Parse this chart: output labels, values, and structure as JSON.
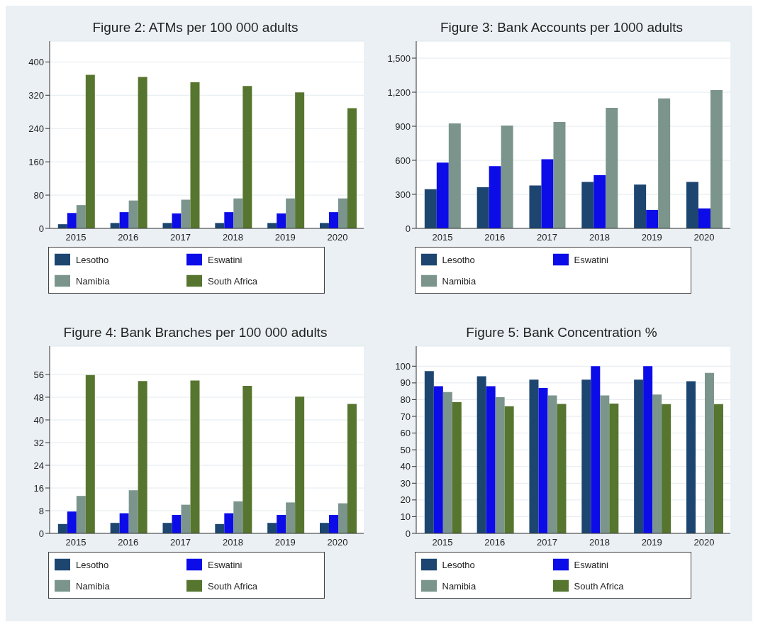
{
  "chart_data": [
    {
      "type": "bar",
      "title": "Figure 2: ATMs per 100 000 adults",
      "categories": [
        "2015",
        "2016",
        "2017",
        "2018",
        "2019",
        "2020"
      ],
      "series": [
        {
          "name": "Lesotho",
          "color": "#1c4670",
          "values": [
            10,
            13,
            13,
            13,
            13,
            13
          ]
        },
        {
          "name": "Eswatini",
          "color": "#0c0ce8",
          "values": [
            37,
            39,
            36,
            39,
            36,
            39
          ]
        },
        {
          "name": "Namibia",
          "color": "#7b958c",
          "values": [
            56,
            67,
            69,
            72,
            72,
            72
          ]
        },
        {
          "name": "South Africa",
          "color": "#56752e",
          "values": [
            369,
            364,
            351,
            342,
            327,
            289
          ]
        }
      ],
      "ylim": [
        0,
        450
      ],
      "yticks": [
        0,
        80,
        160,
        240,
        320,
        400
      ],
      "grid": "y",
      "legend": "bottom"
    },
    {
      "type": "bar",
      "title": "Figure 3: Bank Accounts per 1000 adults",
      "categories": [
        "2015",
        "2016",
        "2017",
        "2018",
        "2019",
        "2020"
      ],
      "series": [
        {
          "name": "Lesotho",
          "color": "#1c4670",
          "values": [
            345,
            363,
            378,
            409,
            386,
            409
          ]
        },
        {
          "name": "Eswatini",
          "color": "#0c0ce8",
          "values": [
            580,
            549,
            609,
            469,
            163,
            176
          ]
        },
        {
          "name": "Namibia",
          "color": "#7b958c",
          "values": [
            925,
            907,
            938,
            1062,
            1145,
            1218
          ]
        }
      ],
      "ylim": [
        0,
        1650
      ],
      "yticks": [
        0,
        300,
        600,
        900,
        {
          "value": 1200,
          "label": "1,200"
        },
        {
          "value": 1500,
          "label": "1,500"
        }
      ],
      "grid": "y",
      "legend": "bottom"
    },
    {
      "type": "bar",
      "title": "Figure 4: Bank Branches per 100 000 adults",
      "categories": [
        "2015",
        "2016",
        "2017",
        "2018",
        "2019",
        "2020"
      ],
      "series": [
        {
          "name": "Lesotho",
          "color": "#1c4670",
          "values": [
            3.3,
            3.7,
            3.7,
            3.3,
            3.7,
            3.7
          ]
        },
        {
          "name": "Eswatini",
          "color": "#0c0ce8",
          "values": [
            7.7,
            7.1,
            6.5,
            7.1,
            6.5,
            6.5
          ]
        },
        {
          "name": "Namibia",
          "color": "#7b958c",
          "values": [
            13.2,
            15.2,
            10.1,
            11.3,
            10.9,
            10.6
          ]
        },
        {
          "name": "South Africa",
          "color": "#56752e",
          "values": [
            55.8,
            53.7,
            53.9,
            52,
            48.2,
            45.6
          ]
        }
      ],
      "ylim": [
        0,
        66
      ],
      "yticks": [
        0,
        8,
        16,
        24,
        32,
        40,
        48,
        56
      ],
      "grid": "y",
      "legend": "bottom"
    },
    {
      "type": "bar",
      "title": "Figure 5: Bank Concentration %",
      "categories": [
        "2015",
        "2016",
        "2017",
        "2018",
        "2019",
        "2020"
      ],
      "series": [
        {
          "name": "Lesotho",
          "color": "#1c4670",
          "values": [
            97,
            94,
            92,
            92,
            92,
            91
          ]
        },
        {
          "name": "Eswatini",
          "color": "#0c0ce8",
          "values": [
            88,
            88,
            87,
            100,
            100,
            null
          ]
        },
        {
          "name": "Namibia",
          "color": "#7b958c",
          "values": [
            84.5,
            81.5,
            82.5,
            82.5,
            83,
            96
          ]
        },
        {
          "name": "South Africa",
          "color": "#56752e",
          "values": [
            78.5,
            76,
            77.4,
            77.6,
            77.3,
            77.3
          ]
        }
      ],
      "ylim": [
        0,
        112
      ],
      "yticks": [
        0,
        10,
        20,
        30,
        40,
        50,
        60,
        70,
        80,
        90,
        100
      ],
      "grid": "y",
      "legend": "bottom"
    }
  ]
}
